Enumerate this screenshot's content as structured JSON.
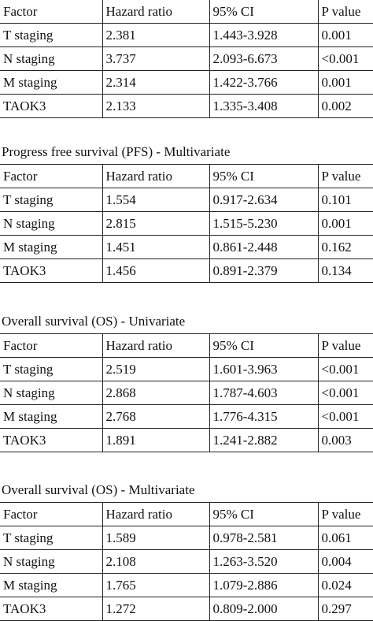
{
  "tables": [
    {
      "caption": "",
      "header": [
        "Factor",
        "Hazard ratio",
        "95% CI",
        "P value"
      ],
      "rows": [
        [
          "T staging",
          "2.381",
          "1.443-3.928",
          "0.001"
        ],
        [
          "N staging",
          "3.737",
          "2.093-6.673",
          "<0.001"
        ],
        [
          "M staging",
          "2.314",
          "1.422-3.766",
          "0.001"
        ],
        [
          "TAOK3",
          "2.133",
          "1.335-3.408",
          "0.002"
        ]
      ]
    },
    {
      "caption": "Progress free survival (PFS) - Multivariate",
      "header": [
        "Factor",
        "Hazard ratio",
        "95% CI",
        "P value"
      ],
      "rows": [
        [
          "T staging",
          "1.554",
          "0.917-2.634",
          "0.101"
        ],
        [
          "N staging",
          "2.815",
          "1.515-5.230",
          "0.001"
        ],
        [
          "M staging",
          "1.451",
          "0.861-2.448",
          "0.162"
        ],
        [
          "TAOK3",
          "1.456",
          "0.891-2.379",
          "0.134"
        ]
      ]
    },
    {
      "caption": "Overall survival (OS) - Univariate",
      "header": [
        "Factor",
        "Hazard ratio",
        "95% CI",
        "P value"
      ],
      "rows": [
        [
          "T staging",
          "2.519",
          "1.601-3.963",
          "<0.001"
        ],
        [
          "N staging",
          "2.868",
          "1.787-4.603",
          "<0.001"
        ],
        [
          "M staging",
          "2.768",
          "1.776-4.315",
          "<0.001"
        ],
        [
          "TAOK3",
          "1.891",
          "1.241-2.882",
          "0.003"
        ]
      ]
    },
    {
      "caption": "Overall survival (OS) - Multivariate",
      "header": [
        "Factor",
        "Hazard ratio",
        "95% CI",
        "P value"
      ],
      "rows": [
        [
          "T staging",
          "1.589",
          "0.978-2.581",
          "0.061"
        ],
        [
          "N staging",
          "2.108",
          "1.263-3.520",
          "0.004"
        ],
        [
          "M staging",
          "1.765",
          "1.079-2.886",
          "0.024"
        ],
        [
          "TAOK3",
          "1.272",
          "0.809-2.000",
          "0.297"
        ]
      ]
    }
  ]
}
